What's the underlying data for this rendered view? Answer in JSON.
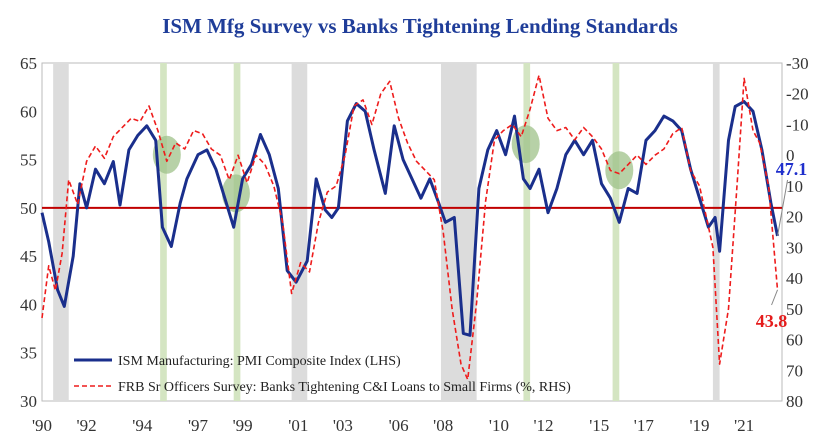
{
  "chart_data": {
    "type": "line",
    "title": "ISM Mfg Survey vs Banks Tightening Lending Standards",
    "x_range": [
      1990.0,
      2023.2
    ],
    "x_tick_labels": [
      {
        "year": 1990.0,
        "label": "'90"
      },
      {
        "year": 1992.0,
        "label": "'92"
      },
      {
        "year": 1994.5,
        "label": "'94"
      },
      {
        "year": 1997.0,
        "label": "'97"
      },
      {
        "year": 1999.0,
        "label": "'99"
      },
      {
        "year": 2001.5,
        "label": "'01"
      },
      {
        "year": 2003.5,
        "label": "'03"
      },
      {
        "year": 2006.0,
        "label": "'06"
      },
      {
        "year": 2008.0,
        "label": "'08"
      },
      {
        "year": 2010.5,
        "label": "'10"
      },
      {
        "year": 2012.5,
        "label": "'12"
      },
      {
        "year": 2015.0,
        "label": "'15"
      },
      {
        "year": 2017.0,
        "label": "'17"
      },
      {
        "year": 2019.5,
        "label": "'19"
      },
      {
        "year": 2021.5,
        "label": "'21"
      }
    ],
    "y_left": {
      "min": 30,
      "max": 65,
      "ticks": [
        30,
        35,
        40,
        45,
        50,
        55,
        60,
        65
      ]
    },
    "y_right": {
      "min": -30,
      "max": 80,
      "inverted": true,
      "ticks": [
        -30,
        -20,
        -10,
        0,
        10,
        20,
        30,
        40,
        50,
        60,
        70,
        80
      ]
    },
    "reference_line_left": 50,
    "recession_bands": [
      [
        1990.5,
        1991.2
      ],
      [
        2001.2,
        2001.9
      ],
      [
        2007.9,
        2009.5
      ],
      [
        2020.1,
        2020.4
      ]
    ],
    "slowdown_bands": [
      [
        1995.3,
        1995.6
      ],
      [
        1998.6,
        1998.9
      ],
      [
        2011.6,
        2011.9
      ],
      [
        2015.6,
        2015.9
      ]
    ],
    "highlight_circles": [
      {
        "year": 1995.6,
        "value_left": 55.5
      },
      {
        "year": 1998.7,
        "value_left": 51.5
      },
      {
        "year": 2011.7,
        "value_left": 56.6
      },
      {
        "year": 2015.9,
        "value_left": 53.9
      }
    ],
    "series": [
      {
        "name": "ISM Manufacturing: PMI Composite Index (LHS)",
        "axis": "left",
        "color": "#1a2f8c",
        "style": "solid",
        "points": [
          [
            1990.0,
            49.5
          ],
          [
            1990.3,
            46.5
          ],
          [
            1990.7,
            41.5
          ],
          [
            1991.0,
            39.8
          ],
          [
            1991.4,
            45.0
          ],
          [
            1991.7,
            52.5
          ],
          [
            1992.0,
            50.0
          ],
          [
            1992.4,
            54.0
          ],
          [
            1992.8,
            52.5
          ],
          [
            1993.2,
            54.8
          ],
          [
            1993.5,
            50.3
          ],
          [
            1993.9,
            56.0
          ],
          [
            1994.3,
            57.5
          ],
          [
            1994.7,
            58.5
          ],
          [
            1995.1,
            57.0
          ],
          [
            1995.4,
            48.0
          ],
          [
            1995.8,
            46.0
          ],
          [
            1996.2,
            50.5
          ],
          [
            1996.5,
            53.0
          ],
          [
            1997.0,
            55.5
          ],
          [
            1997.4,
            56.0
          ],
          [
            1997.8,
            54.0
          ],
          [
            1998.2,
            51.0
          ],
          [
            1998.6,
            48.0
          ],
          [
            1999.0,
            53.0
          ],
          [
            1999.4,
            54.5
          ],
          [
            1999.8,
            57.6
          ],
          [
            2000.2,
            55.5
          ],
          [
            2000.6,
            52.0
          ],
          [
            2001.0,
            43.5
          ],
          [
            2001.4,
            42.3
          ],
          [
            2001.9,
            44.5
          ],
          [
            2002.3,
            53.0
          ],
          [
            2002.7,
            49.8
          ],
          [
            2003.0,
            49.0
          ],
          [
            2003.3,
            50.0
          ],
          [
            2003.7,
            59.0
          ],
          [
            2004.1,
            60.8
          ],
          [
            2004.5,
            60.0
          ],
          [
            2004.9,
            56.0
          ],
          [
            2005.4,
            51.5
          ],
          [
            2005.8,
            58.5
          ],
          [
            2006.2,
            55.0
          ],
          [
            2006.6,
            53.0
          ],
          [
            2007.0,
            51.0
          ],
          [
            2007.4,
            53.0
          ],
          [
            2007.8,
            50.5
          ],
          [
            2008.1,
            48.5
          ],
          [
            2008.5,
            49.0
          ],
          [
            2008.9,
            37.0
          ],
          [
            2009.2,
            36.8
          ],
          [
            2009.6,
            52.0
          ],
          [
            2010.0,
            56.0
          ],
          [
            2010.4,
            58.0
          ],
          [
            2010.8,
            55.5
          ],
          [
            2011.2,
            59.5
          ],
          [
            2011.6,
            53.0
          ],
          [
            2011.9,
            52.0
          ],
          [
            2012.3,
            54.0
          ],
          [
            2012.7,
            49.5
          ],
          [
            2013.1,
            52.0
          ],
          [
            2013.5,
            55.5
          ],
          [
            2013.9,
            57.0
          ],
          [
            2014.3,
            55.5
          ],
          [
            2014.7,
            57.0
          ],
          [
            2015.1,
            52.5
          ],
          [
            2015.5,
            51.0
          ],
          [
            2015.9,
            48.5
          ],
          [
            2016.3,
            52.0
          ],
          [
            2016.7,
            51.5
          ],
          [
            2017.1,
            57.0
          ],
          [
            2017.5,
            58.0
          ],
          [
            2017.9,
            59.5
          ],
          [
            2018.3,
            59.0
          ],
          [
            2018.7,
            58.0
          ],
          [
            2019.1,
            54.0
          ],
          [
            2019.5,
            51.0
          ],
          [
            2019.9,
            48.0
          ],
          [
            2020.2,
            49.0
          ],
          [
            2020.4,
            45.5
          ],
          [
            2020.8,
            57.0
          ],
          [
            2021.1,
            60.5
          ],
          [
            2021.5,
            61.0
          ],
          [
            2021.9,
            60.0
          ],
          [
            2022.3,
            56.0
          ],
          [
            2022.7,
            50.5
          ],
          [
            2023.0,
            47.1
          ]
        ]
      },
      {
        "name": "FRB Sr Officers Survey: Banks Tightening C&I Loans to Small Firms (%, RHS)",
        "axis": "right",
        "color": "#ee1c1c",
        "style": "dashed",
        "points": [
          [
            1990.0,
            53.0
          ],
          [
            1990.3,
            36.0
          ],
          [
            1990.6,
            44.0
          ],
          [
            1990.9,
            32.0
          ],
          [
            1991.2,
            8.0
          ],
          [
            1991.6,
            16.0
          ],
          [
            1992.0,
            2.0
          ],
          [
            1992.4,
            -3.0
          ],
          [
            1992.8,
            1.0
          ],
          [
            1993.2,
            -6.0
          ],
          [
            1993.6,
            -9.0
          ],
          [
            1994.0,
            -12.0
          ],
          [
            1994.4,
            -11.0
          ],
          [
            1994.8,
            -16.0
          ],
          [
            1995.2,
            -8.0
          ],
          [
            1995.6,
            2.0
          ],
          [
            1996.0,
            -4.0
          ],
          [
            1996.4,
            -2.0
          ],
          [
            1996.8,
            -8.0
          ],
          [
            1997.2,
            -7.0
          ],
          [
            1997.6,
            -2.0
          ],
          [
            1998.0,
            0.0
          ],
          [
            1998.4,
            8.0
          ],
          [
            1998.8,
            0.0
          ],
          [
            1999.2,
            9.0
          ],
          [
            1999.6,
            0.0
          ],
          [
            2000.0,
            3.0
          ],
          [
            2000.4,
            10.0
          ],
          [
            2000.8,
            22.0
          ],
          [
            2001.2,
            45.0
          ],
          [
            2001.6,
            35.0
          ],
          [
            2002.0,
            38.0
          ],
          [
            2002.4,
            22.0
          ],
          [
            2002.8,
            12.0
          ],
          [
            2003.2,
            10.0
          ],
          [
            2003.6,
            0.0
          ],
          [
            2004.0,
            -16.0
          ],
          [
            2004.4,
            -18.0
          ],
          [
            2004.8,
            -10.0
          ],
          [
            2005.2,
            -20.0
          ],
          [
            2005.6,
            -24.0
          ],
          [
            2006.0,
            -12.0
          ],
          [
            2006.4,
            -4.0
          ],
          [
            2006.8,
            2.0
          ],
          [
            2007.2,
            5.0
          ],
          [
            2007.6,
            8.0
          ],
          [
            2008.0,
            25.0
          ],
          [
            2008.4,
            50.0
          ],
          [
            2008.8,
            68.0
          ],
          [
            2009.1,
            73.0
          ],
          [
            2009.5,
            48.0
          ],
          [
            2009.9,
            15.0
          ],
          [
            2010.3,
            -5.0
          ],
          [
            2010.7,
            -8.0
          ],
          [
            2011.1,
            -10.0
          ],
          [
            2011.5,
            -6.0
          ],
          [
            2011.9,
            -15.0
          ],
          [
            2012.3,
            -26.0
          ],
          [
            2012.7,
            -12.0
          ],
          [
            2013.1,
            -8.0
          ],
          [
            2013.5,
            -9.0
          ],
          [
            2013.9,
            -5.0
          ],
          [
            2014.3,
            -9.0
          ],
          [
            2014.7,
            -6.0
          ],
          [
            2015.1,
            -2.0
          ],
          [
            2015.5,
            5.0
          ],
          [
            2015.9,
            6.0
          ],
          [
            2016.3,
            3.0
          ],
          [
            2016.7,
            0.0
          ],
          [
            2017.1,
            3.0
          ],
          [
            2017.5,
            0.0
          ],
          [
            2017.9,
            -2.0
          ],
          [
            2018.3,
            -7.0
          ],
          [
            2018.7,
            -9.0
          ],
          [
            2019.1,
            5.0
          ],
          [
            2019.5,
            10.0
          ],
          [
            2019.8,
            20.0
          ],
          [
            2020.1,
            30.0
          ],
          [
            2020.4,
            68.0
          ],
          [
            2020.8,
            50.0
          ],
          [
            2021.2,
            8.0
          ],
          [
            2021.5,
            -25.0
          ],
          [
            2021.9,
            -8.0
          ],
          [
            2022.2,
            -4.0
          ],
          [
            2022.6,
            10.0
          ],
          [
            2023.0,
            43.8
          ]
        ]
      }
    ],
    "annotations": [
      {
        "text": "47.1",
        "series": 0,
        "color": "#1f2fcc"
      },
      {
        "text": "43.8",
        "series": 1,
        "color": "#e51c1c"
      }
    ],
    "legend_placement": "bottom-left"
  }
}
